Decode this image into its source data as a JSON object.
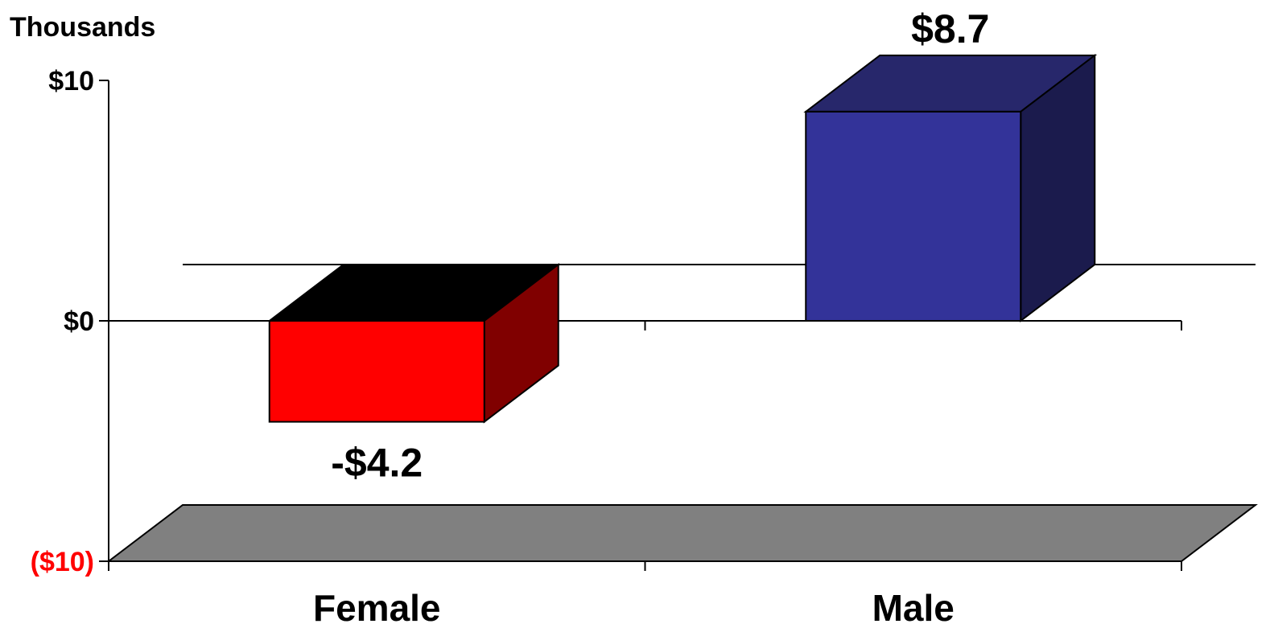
{
  "chart_data": {
    "type": "bar",
    "style": "3d",
    "unit_label": "Thousands",
    "categories": [
      "Female",
      "Male"
    ],
    "values": [
      -4.2,
      8.7
    ],
    "value_labels": [
      "-$4.2",
      "$8.7"
    ],
    "ylim": [
      -10,
      10
    ],
    "y_ticks": [
      {
        "value": 10,
        "label": "$10",
        "color": "#000000"
      },
      {
        "value": 0,
        "label": "$0",
        "color": "#000000"
      },
      {
        "value": -10,
        "label": "($10)",
        "color": "#ff0000"
      }
    ],
    "grid": false,
    "legend": "none",
    "colors": {
      "female_front": "#ff0000",
      "female_side": "#800000",
      "female_top": "#000000",
      "male_front": "#333399",
      "male_side": "#1b1b4d",
      "male_top": "#27276b",
      "floor": "#808080",
      "negative_tick_label": "#ff0000"
    }
  }
}
